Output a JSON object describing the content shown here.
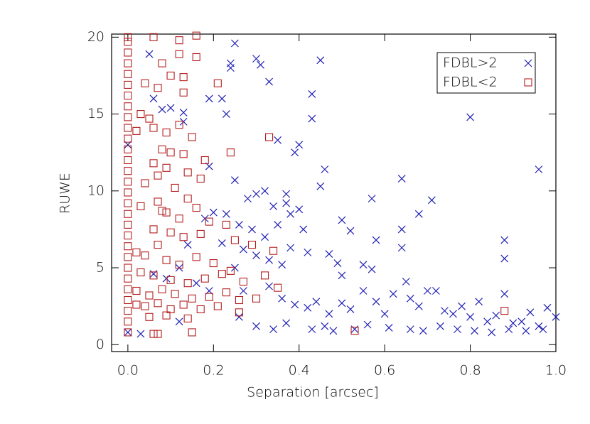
{
  "chart_data": {
    "type": "scatter",
    "xlabel": "Separation [arcsec]",
    "ylabel": "RUWE",
    "xlim": [
      -0.038,
      1.0
    ],
    "ylim": [
      -0.45,
      20.2
    ],
    "xticks": [
      {
        "value": 0,
        "label": "0.0"
      },
      0.2,
      0.4,
      0.6,
      0.8,
      {
        "value": 1,
        "label": "1.0"
      }
    ],
    "yticks": [
      0,
      5,
      10,
      15,
      20
    ],
    "legend": "upper right",
    "series": [
      {
        "name": "FDBL>2",
        "color": "#1f1fb4",
        "marker": "x",
        "x": [
          0.05,
          0.25,
          0.3,
          0.31,
          0.24,
          0.24,
          0.45,
          0.43,
          0.43,
          0.19,
          0.22,
          0.23,
          0.1,
          0.13,
          0.13,
          0.08,
          0.06,
          0.33,
          0.4,
          0.39,
          0.35,
          0.19,
          0.46,
          0.45,
          0.25,
          0.28,
          0.3,
          0.32,
          0.34,
          0.37,
          0.37,
          0.38,
          0.4,
          0.41,
          0.35,
          0.32,
          0.29,
          0.23,
          0.2,
          0.18,
          0.26,
          0.5,
          0.52,
          0.57,
          0.58,
          0.64,
          0.64,
          0.64,
          0.68,
          0.71,
          0.8,
          0.96,
          0.88,
          0.88,
          0.47,
          0.49,
          0.5,
          0.55,
          0.57,
          0.42,
          0.38,
          0.36,
          0.33,
          0.3,
          0.27,
          0.25,
          0.22,
          0.14,
          0.12,
          0.09,
          0.06,
          0.16,
          0.19,
          0.27,
          0.33,
          0.36,
          0.39,
          0.42,
          0.44,
          0.47,
          0.5,
          0.52,
          0.55,
          0.58,
          0.6,
          0.62,
          0.65,
          0.66,
          0.68,
          0.7,
          0.72,
          0.74,
          0.76,
          0.78,
          0.8,
          0.82,
          0.84,
          0.86,
          0.88,
          0.9,
          0.92,
          0.94,
          0.96,
          0.98,
          1.0,
          0.43,
          0.46,
          0.48,
          0.53,
          0.56,
          0.61,
          0.66,
          0.69,
          0.73,
          0.77,
          0.81,
          0.85,
          0.89,
          0.93,
          0.97,
          0.3,
          0.34,
          0.37,
          0.26,
          0.12,
          0.03,
          0.0,
          0.0
        ],
        "values": [
          18.9,
          19.6,
          18.6,
          18.2,
          18.3,
          18.0,
          18.5,
          16.3,
          14.7,
          16.0,
          16.0,
          15.0,
          15.4,
          15.1,
          14.5,
          15.3,
          16.0,
          17.1,
          13.0,
          12.5,
          13.3,
          11.6,
          11.4,
          10.3,
          10.7,
          9.5,
          9.8,
          10.0,
          9.0,
          9.8,
          9.2,
          8.5,
          8.8,
          7.5,
          7.8,
          7.0,
          7.5,
          8.5,
          8.6,
          8.2,
          7.8,
          8.1,
          7.4,
          9.5,
          6.8,
          10.8,
          7.5,
          6.3,
          8.5,
          9.4,
          14.8,
          11.4,
          6.8,
          5.6,
          5.9,
          5.3,
          4.5,
          5.2,
          4.9,
          6.0,
          6.3,
          5.2,
          5.5,
          5.8,
          6.2,
          5.0,
          6.6,
          6.5,
          5.0,
          4.3,
          4.6,
          4.0,
          3.5,
          3.5,
          3.8,
          3.0,
          2.6,
          2.4,
          2.8,
          2.0,
          2.7,
          2.3,
          3.5,
          2.8,
          2.0,
          3.3,
          4.1,
          3.0,
          2.5,
          3.5,
          3.5,
          2.2,
          2.0,
          2.5,
          1.8,
          2.8,
          1.5,
          1.9,
          3.3,
          1.4,
          1.5,
          2.1,
          1.2,
          2.4,
          1.8,
          1.0,
          1.2,
          0.9,
          1.0,
          1.3,
          1.1,
          1.0,
          0.9,
          1.2,
          1.0,
          0.9,
          0.8,
          1.0,
          0.9,
          1.0,
          1.2,
          1.0,
          1.4,
          1.8,
          1.5,
          0.7,
          0.8,
          13.0
        ]
      },
      {
        "name": "FDBL<2",
        "color": "#b41f1f",
        "marker": "square",
        "x": [
          0,
          0,
          0,
          0,
          0,
          0,
          0,
          0,
          0,
          0,
          0,
          0,
          0,
          0,
          0,
          0,
          0,
          0,
          0,
          0,
          0,
          0,
          0,
          0,
          0,
          0,
          0,
          0,
          0.0,
          0.06,
          0.12,
          0.16,
          0.12,
          0.08,
          0.16,
          0.1,
          0.13,
          0.04,
          0.07,
          0.13,
          0.21,
          0.03,
          0.05,
          0.06,
          0.09,
          0.12,
          0.15,
          0.02,
          0.08,
          0.1,
          0.13,
          0.18,
          0.24,
          0.33,
          0.06,
          0.09,
          0.14,
          0.17,
          0.07,
          0.04,
          0.11,
          0.14,
          0.03,
          0.07,
          0.08,
          0.09,
          0.12,
          0.16,
          0.19,
          0.23,
          0.06,
          0.1,
          0.13,
          0.17,
          0.25,
          0.29,
          0.34,
          0.07,
          0.02,
          0.04,
          0.09,
          0.12,
          0.16,
          0.2,
          0.24,
          0.03,
          0.06,
          0.1,
          0.14,
          0.18,
          0.22,
          0.27,
          0.32,
          0.02,
          0.05,
          0.08,
          0.11,
          0.15,
          0.19,
          0.23,
          0.26,
          0.3,
          0.35,
          0.02,
          0.04,
          0.07,
          0.1,
          0.13,
          0.17,
          0.21,
          0.26,
          0.05,
          0.09,
          0.14,
          0.06,
          0.07,
          0.15,
          0.53,
          0.88
        ],
        "values": [
          0.8,
          1.5,
          2.2,
          2.9,
          3.6,
          4.3,
          5.0,
          5.7,
          6.4,
          7.1,
          7.8,
          8.5,
          9.2,
          9.9,
          10.6,
          11.3,
          12.0,
          12.7,
          13.4,
          14.1,
          14.8,
          15.5,
          16.2,
          16.9,
          17.6,
          18.3,
          19.0,
          19.7,
          20.0,
          20.0,
          19.8,
          20.1,
          18.9,
          18.3,
          18.7,
          17.5,
          17.4,
          17.0,
          16.7,
          16.4,
          17.0,
          15.0,
          14.7,
          14.1,
          13.8,
          14.3,
          13.5,
          13.9,
          12.7,
          12.5,
          12.4,
          12.0,
          12.5,
          13.5,
          11.8,
          11.5,
          11.2,
          10.8,
          11.0,
          10.5,
          10.2,
          9.5,
          9.0,
          9.3,
          8.7,
          8.6,
          8.2,
          8.9,
          8.0,
          7.8,
          7.5,
          7.3,
          7.0,
          7.2,
          6.8,
          6.5,
          6.1,
          6.5,
          6.0,
          5.8,
          5.5,
          5.2,
          5.7,
          5.3,
          4.8,
          4.7,
          4.5,
          4.2,
          4.0,
          4.3,
          4.6,
          4.1,
          4.5,
          3.5,
          3.2,
          3.6,
          3.3,
          3.0,
          3.1,
          3.4,
          2.9,
          3.0,
          3.7,
          2.6,
          2.5,
          2.7,
          2.3,
          2.6,
          2.3,
          2.5,
          2.1,
          1.8,
          1.9,
          1.7,
          0.7,
          0.7,
          0.8,
          0.9,
          2.2
        ]
      }
    ]
  }
}
